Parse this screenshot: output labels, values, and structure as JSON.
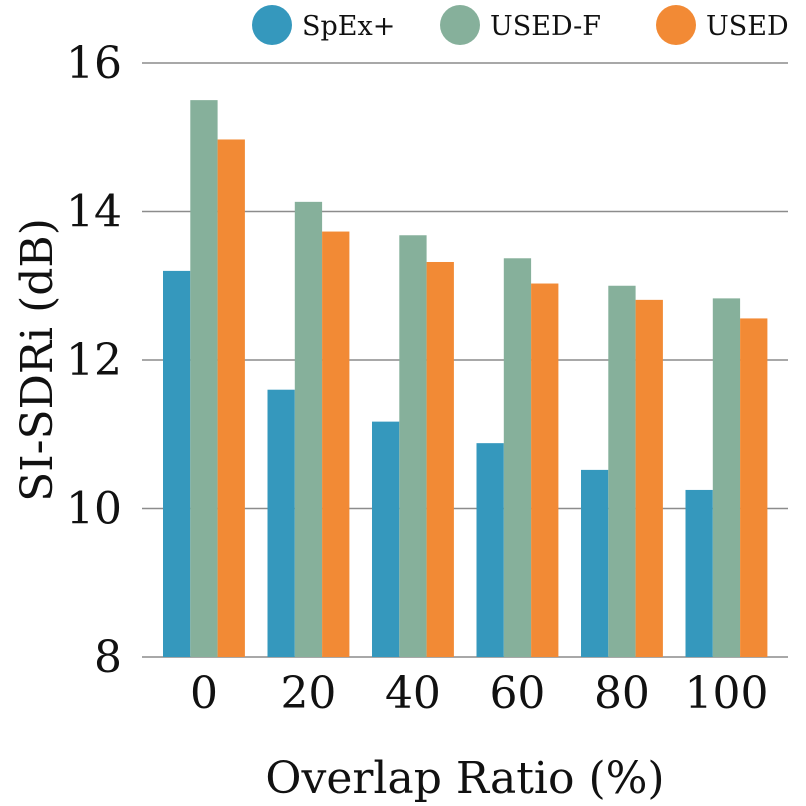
{
  "chart_data": {
    "type": "bar",
    "categories": [
      "0",
      "20",
      "40",
      "60",
      "80",
      "100"
    ],
    "series": [
      {
        "name": "SpEx+",
        "color": "#3598bd",
        "values": [
          13.2,
          11.6,
          11.17,
          10.88,
          10.52,
          10.25
        ]
      },
      {
        "name": "USED-F",
        "color": "#86b09b",
        "values": [
          15.5,
          14.13,
          13.68,
          13.37,
          13.0,
          12.83
        ]
      },
      {
        "name": "USED",
        "color": "#f28a35",
        "values": [
          14.97,
          13.73,
          13.32,
          13.03,
          12.81,
          12.56
        ]
      }
    ],
    "title": "",
    "xlabel": "Overlap Ratio (%)",
    "ylabel": "SI-SDRi (dB)",
    "ylim": [
      8,
      16
    ],
    "yticks": [
      "8",
      "10",
      "12",
      "14",
      "16"
    ],
    "grid": true,
    "legend_position": "top"
  }
}
